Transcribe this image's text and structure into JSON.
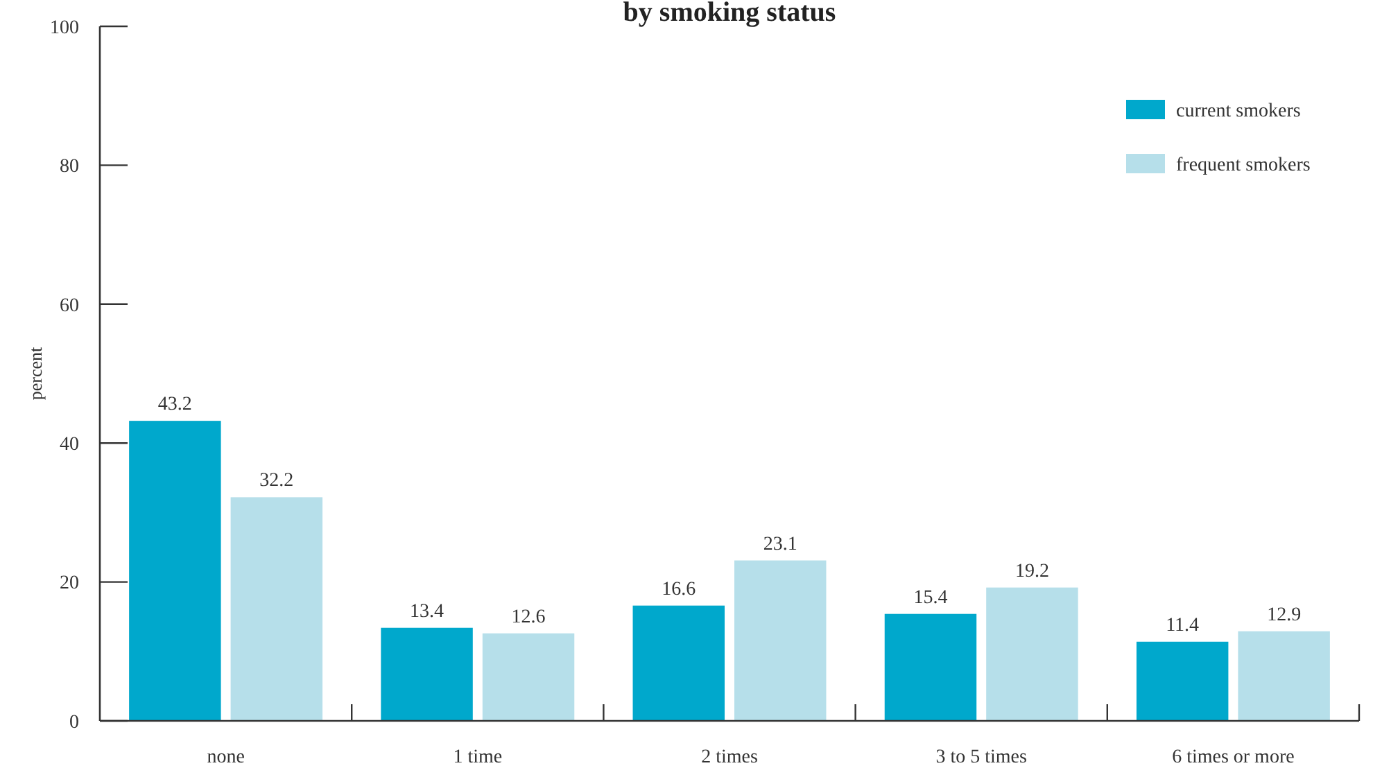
{
  "chart_data": {
    "type": "bar",
    "title": "by smoking status",
    "ylabel": "percent",
    "categories": [
      "none",
      "1 time",
      "2 times",
      "3 to 5 times",
      "6 times or more"
    ],
    "series": [
      {
        "name": "current smokers",
        "color": "#00a8cc",
        "values": [
          43.2,
          13.4,
          16.6,
          15.4,
          11.4
        ]
      },
      {
        "name": "frequent smokers",
        "color": "#b6dfea",
        "values": [
          32.2,
          12.6,
          23.1,
          19.2,
          12.9
        ]
      }
    ],
    "ylim": [
      0,
      100
    ],
    "yticks": [
      0,
      20,
      40,
      60,
      80,
      100
    ],
    "grid": false,
    "legend": "top right",
    "data_labels": true
  }
}
